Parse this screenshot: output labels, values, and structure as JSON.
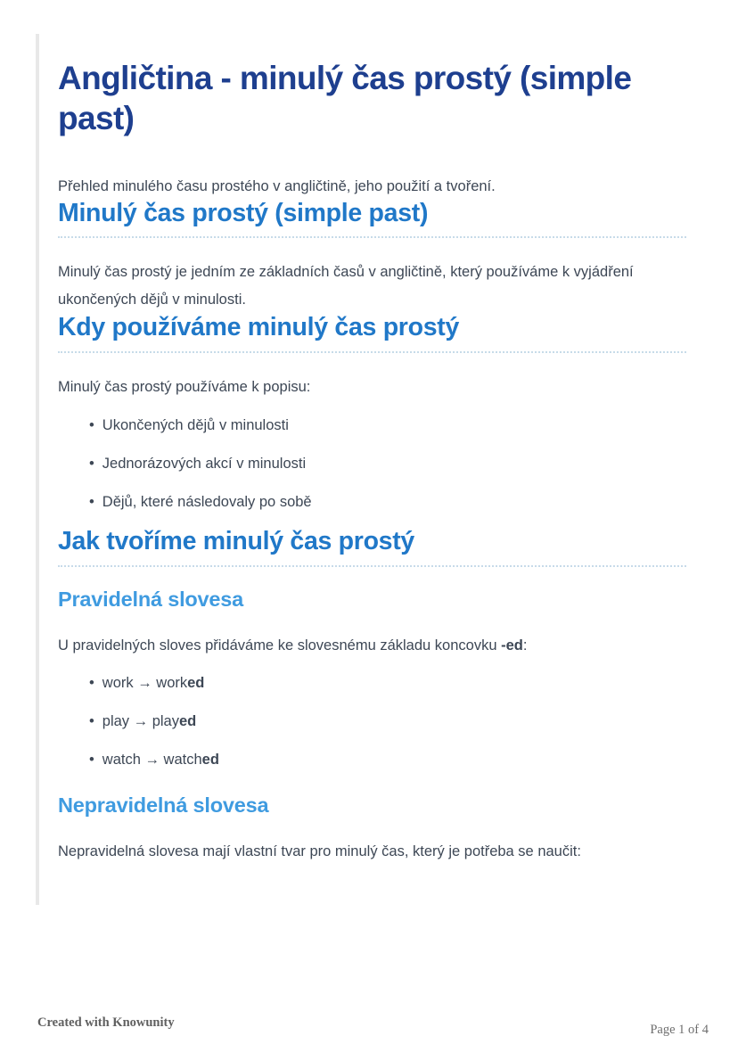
{
  "doc": {
    "title": "Angličtina - minulý čas prostý (simple past)",
    "intro": "Přehled minulého času prostého v angličtině, jeho použití a tvoření.",
    "section1": {
      "heading": "Minulý čas prostý (simple past)",
      "body": "Minulý čas prostý je jedním ze základních časů v angličtině, který používáme k vyjádření ukončených dějů v minulosti."
    },
    "section2": {
      "heading": "Kdy používáme minulý čas prostý",
      "lead": "Minulý čas prostý používáme k popisu:",
      "items": [
        "Ukončených dějů v minulosti",
        "Jednorázových akcí v minulosti",
        "Dějů, které následovaly po sobě"
      ]
    },
    "section3": {
      "heading": "Jak tvoříme minulý čas prostý",
      "regular": {
        "heading": "Pravidelná slovesa",
        "lead": [
          {
            "t": "U pravidelných sloves přidáváme ke slovesnému základu koncovku "
          },
          {
            "t": "-ed",
            "b": true
          },
          {
            "t": ":"
          }
        ],
        "items": [
          [
            {
              "t": "work → work"
            },
            {
              "t": "ed",
              "b": true
            }
          ],
          [
            {
              "t": "play → play"
            },
            {
              "t": "ed",
              "b": true
            }
          ],
          [
            {
              "t": "watch → watch"
            },
            {
              "t": "ed",
              "b": true
            }
          ]
        ]
      },
      "irregular": {
        "heading": "Nepravidelná slovesa",
        "lead": "Nepravidelná slovesa mají vlastní tvar pro minulý čas, který je potřeba se naučit:"
      }
    },
    "footer": {
      "credit": "Created with Knowunity",
      "page": "Page 1 of 4"
    },
    "colors": {
      "title_navy": "#1e3f8f",
      "heading_blue": "#2078c8",
      "subheading_blue": "#3f9be0",
      "body_text": "#3d4755",
      "dotted_rule": "#c7dbe9",
      "card_edge": "#e8e8e8",
      "footer_gray": "#5f5f5f"
    }
  }
}
